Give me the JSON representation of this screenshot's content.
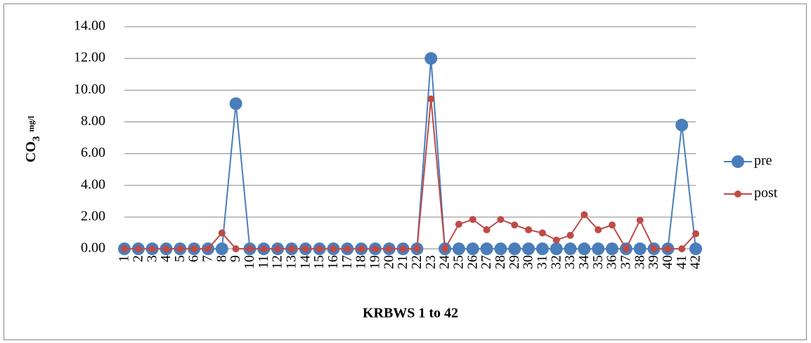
{
  "chart_data": {
    "type": "line",
    "x_label": "KRBWS 1 to 42",
    "y_label": "CO",
    "y_label_subscript": "3",
    "y_label_unit": "mg/l",
    "categories": [
      "1",
      "2",
      "3",
      "4",
      "5",
      "6",
      "7",
      "8",
      "9",
      "10",
      "11",
      "12",
      "13",
      "14",
      "15",
      "16",
      "17",
      "18",
      "19",
      "20",
      "21",
      "22",
      "23",
      "24",
      "25",
      "26",
      "27",
      "28",
      "29",
      "30",
      "31",
      "32",
      "33",
      "34",
      "35",
      "36",
      "37",
      "38",
      "39",
      "40",
      "41",
      "42"
    ],
    "series": [
      {
        "name": "pre",
        "color": "#4a7ebb",
        "values": [
          0,
          0,
          0,
          0,
          0,
          0,
          0,
          0,
          9.15,
          0,
          0,
          0,
          0,
          0,
          0,
          0,
          0,
          0,
          0,
          0,
          0,
          0,
          12.0,
          0,
          0,
          0,
          0,
          0,
          0,
          0,
          0,
          0,
          0,
          0,
          0,
          0,
          0,
          0,
          0,
          0,
          7.8,
          0
        ]
      },
      {
        "name": "post",
        "color": "#be4b48",
        "values": [
          0,
          0,
          0,
          0,
          0,
          0,
          0,
          1.0,
          0,
          0,
          0,
          0,
          0,
          0,
          0,
          0,
          0,
          0,
          0,
          0,
          0,
          0,
          9.45,
          0,
          1.55,
          1.85,
          1.2,
          1.85,
          1.5,
          1.2,
          1.0,
          0.55,
          0.85,
          2.15,
          1.2,
          1.5,
          0,
          1.8,
          0,
          0,
          0,
          0.95
        ]
      }
    ],
    "ylim": [
      0,
      14
    ],
    "yticks": [
      {
        "value": 0,
        "label": "0.00"
      },
      {
        "value": 2,
        "label": "2.00"
      },
      {
        "value": 4,
        "label": "4.00"
      },
      {
        "value": 6,
        "label": "6.00"
      },
      {
        "value": 8,
        "label": "8.00"
      },
      {
        "value": 10,
        "label": "10.00"
      },
      {
        "value": 12,
        "label": "12.00"
      },
      {
        "value": 14,
        "label": "14.00"
      }
    ],
    "grid": true
  }
}
